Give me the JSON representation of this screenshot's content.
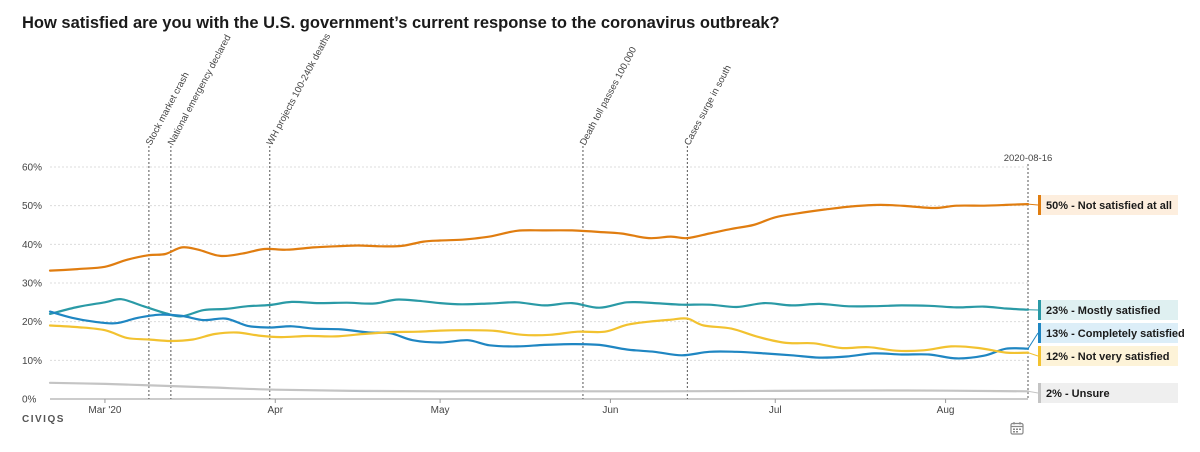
{
  "chart_data": {
    "type": "line",
    "title": "How satisfied are you with the U.S. government’s current response to the coronavirus outbreak?",
    "x_start": "2020-02-20",
    "x_end": "2020-08-16",
    "x_ticks": [
      {
        "date": "2020-03-01",
        "label": "Mar '20"
      },
      {
        "date": "2020-04-01",
        "label": "Apr"
      },
      {
        "date": "2020-05-01",
        "label": "May"
      },
      {
        "date": "2020-06-01",
        "label": "Jun"
      },
      {
        "date": "2020-07-01",
        "label": "Jul"
      },
      {
        "date": "2020-08-01",
        "label": "Aug"
      }
    ],
    "y_ticks": [
      {
        "value": 0,
        "label": "0%"
      },
      {
        "value": 10,
        "label": "10%"
      },
      {
        "value": 20,
        "label": "20%"
      },
      {
        "value": 30,
        "label": "30%"
      },
      {
        "value": 40,
        "label": "40%"
      },
      {
        "value": 50,
        "label": "50%"
      },
      {
        "value": 60,
        "label": "60%"
      }
    ],
    "ylim": [
      0,
      60
    ],
    "grid": true,
    "events": [
      {
        "date": "2020-03-09",
        "label": "Stock market crash"
      },
      {
        "date": "2020-03-13",
        "label": "National emergency declared"
      },
      {
        "date": "2020-03-31",
        "label": "WH projects 100-240k deaths"
      },
      {
        "date": "2020-05-27",
        "label": "Death toll passes 100,000"
      },
      {
        "date": "2020-06-15",
        "label": "Cases surge in south"
      },
      {
        "date": "2020-08-16",
        "label": "2020-08-16"
      }
    ],
    "series": [
      {
        "name": "Not satisfied at all",
        "legend": "50% - Not satisfied at all",
        "color": "#e07d10",
        "legend_bg": "#fdeede",
        "points": [
          [
            "2020-02-20",
            33.2
          ],
          [
            "2020-02-25",
            33.6
          ],
          [
            "2020-03-01",
            34.2
          ],
          [
            "2020-03-05",
            36.0
          ],
          [
            "2020-03-09",
            37.2
          ],
          [
            "2020-03-12",
            37.5
          ],
          [
            "2020-03-15",
            39.2
          ],
          [
            "2020-03-18",
            38.6
          ],
          [
            "2020-03-22",
            37.0
          ],
          [
            "2020-03-26",
            37.6
          ],
          [
            "2020-03-30",
            38.8
          ],
          [
            "2020-04-03",
            38.6
          ],
          [
            "2020-04-08",
            39.2
          ],
          [
            "2020-04-12",
            39.5
          ],
          [
            "2020-04-16",
            39.7
          ],
          [
            "2020-04-20",
            39.5
          ],
          [
            "2020-04-24",
            39.6
          ],
          [
            "2020-04-28",
            40.7
          ],
          [
            "2020-05-01",
            41.0
          ],
          [
            "2020-05-05",
            41.2
          ],
          [
            "2020-05-10",
            42.0
          ],
          [
            "2020-05-15",
            43.5
          ],
          [
            "2020-05-20",
            43.6
          ],
          [
            "2020-05-25",
            43.6
          ],
          [
            "2020-05-30",
            43.2
          ],
          [
            "2020-06-03",
            42.8
          ],
          [
            "2020-06-08",
            41.6
          ],
          [
            "2020-06-12",
            42.0
          ],
          [
            "2020-06-15",
            41.6
          ],
          [
            "2020-06-19",
            42.8
          ],
          [
            "2020-06-23",
            44.0
          ],
          [
            "2020-06-27",
            45.0
          ],
          [
            "2020-07-01",
            47.0
          ],
          [
            "2020-07-05",
            48.0
          ],
          [
            "2020-07-10",
            49.0
          ],
          [
            "2020-07-15",
            49.8
          ],
          [
            "2020-07-20",
            50.2
          ],
          [
            "2020-07-25",
            49.9
          ],
          [
            "2020-07-30",
            49.4
          ],
          [
            "2020-08-03",
            50.0
          ],
          [
            "2020-08-08",
            50.0
          ],
          [
            "2020-08-12",
            50.2
          ],
          [
            "2020-08-16",
            50.4
          ]
        ]
      },
      {
        "name": "Mostly satisfied",
        "legend": "23% - Mostly satisfied",
        "color": "#2a9aa6",
        "legend_bg": "#dff0f1",
        "points": [
          [
            "2020-02-20",
            22.0
          ],
          [
            "2020-02-25",
            23.8
          ],
          [
            "2020-03-01",
            25.0
          ],
          [
            "2020-03-04",
            25.8
          ],
          [
            "2020-03-08",
            24.0
          ],
          [
            "2020-03-12",
            22.2
          ],
          [
            "2020-03-15",
            21.4
          ],
          [
            "2020-03-19",
            23.0
          ],
          [
            "2020-03-23",
            23.3
          ],
          [
            "2020-03-27",
            24.0
          ],
          [
            "2020-03-31",
            24.3
          ],
          [
            "2020-04-04",
            25.1
          ],
          [
            "2020-04-09",
            24.8
          ],
          [
            "2020-04-14",
            24.9
          ],
          [
            "2020-04-19",
            24.7
          ],
          [
            "2020-04-23",
            25.7
          ],
          [
            "2020-04-27",
            25.4
          ],
          [
            "2020-05-01",
            24.8
          ],
          [
            "2020-05-05",
            24.5
          ],
          [
            "2020-05-10",
            24.7
          ],
          [
            "2020-05-15",
            25.0
          ],
          [
            "2020-05-20",
            24.2
          ],
          [
            "2020-05-25",
            24.8
          ],
          [
            "2020-05-30",
            23.6
          ],
          [
            "2020-06-04",
            25.0
          ],
          [
            "2020-06-09",
            24.8
          ],
          [
            "2020-06-14",
            24.4
          ],
          [
            "2020-06-19",
            24.4
          ],
          [
            "2020-06-24",
            23.8
          ],
          [
            "2020-06-29",
            24.8
          ],
          [
            "2020-07-04",
            24.2
          ],
          [
            "2020-07-09",
            24.6
          ],
          [
            "2020-07-14",
            24.0
          ],
          [
            "2020-07-19",
            24.0
          ],
          [
            "2020-07-24",
            24.2
          ],
          [
            "2020-07-29",
            24.1
          ],
          [
            "2020-08-03",
            23.7
          ],
          [
            "2020-08-08",
            23.9
          ],
          [
            "2020-08-12",
            23.4
          ],
          [
            "2020-08-16",
            23.1
          ]
        ]
      },
      {
        "name": "Completely satisfied",
        "legend": "13% - Completely satisfied",
        "color": "#1f86c2",
        "legend_bg": "#dceef8",
        "points": [
          [
            "2020-02-20",
            22.6
          ],
          [
            "2020-02-24",
            21.0
          ],
          [
            "2020-02-28",
            20.0
          ],
          [
            "2020-03-03",
            19.6
          ],
          [
            "2020-03-07",
            21.0
          ],
          [
            "2020-03-11",
            21.8
          ],
          [
            "2020-03-15",
            21.5
          ],
          [
            "2020-03-19",
            20.4
          ],
          [
            "2020-03-23",
            20.8
          ],
          [
            "2020-03-27",
            18.9
          ],
          [
            "2020-03-31",
            18.5
          ],
          [
            "2020-04-04",
            18.8
          ],
          [
            "2020-04-08",
            18.2
          ],
          [
            "2020-04-13",
            18.0
          ],
          [
            "2020-04-18",
            17.2
          ],
          [
            "2020-04-22",
            17.0
          ],
          [
            "2020-04-26",
            15.2
          ],
          [
            "2020-05-01",
            14.6
          ],
          [
            "2020-05-06",
            15.2
          ],
          [
            "2020-05-10",
            13.9
          ],
          [
            "2020-05-15",
            13.6
          ],
          [
            "2020-05-20",
            14.0
          ],
          [
            "2020-05-25",
            14.2
          ],
          [
            "2020-05-30",
            14.0
          ],
          [
            "2020-06-04",
            12.8
          ],
          [
            "2020-06-09",
            12.2
          ],
          [
            "2020-06-14",
            11.3
          ],
          [
            "2020-06-19",
            12.2
          ],
          [
            "2020-06-24",
            12.2
          ],
          [
            "2020-06-29",
            11.8
          ],
          [
            "2020-07-04",
            11.3
          ],
          [
            "2020-07-09",
            10.7
          ],
          [
            "2020-07-14",
            11.0
          ],
          [
            "2020-07-19",
            11.8
          ],
          [
            "2020-07-24",
            11.5
          ],
          [
            "2020-07-29",
            11.5
          ],
          [
            "2020-08-03",
            10.5
          ],
          [
            "2020-08-08",
            11.2
          ],
          [
            "2020-08-12",
            13.0
          ],
          [
            "2020-08-16",
            13.0
          ]
        ]
      },
      {
        "name": "Not very satisfied",
        "legend": "12% - Not very satisfied",
        "color": "#f2c230",
        "legend_bg": "#fdf3d8",
        "points": [
          [
            "2020-02-20",
            19.0
          ],
          [
            "2020-02-25",
            18.6
          ],
          [
            "2020-03-01",
            17.8
          ],
          [
            "2020-03-05",
            15.8
          ],
          [
            "2020-03-09",
            15.4
          ],
          [
            "2020-03-13",
            15.0
          ],
          [
            "2020-03-17",
            15.4
          ],
          [
            "2020-03-21",
            16.8
          ],
          [
            "2020-03-25",
            17.2
          ],
          [
            "2020-03-29",
            16.4
          ],
          [
            "2020-04-02",
            16.0
          ],
          [
            "2020-04-07",
            16.3
          ],
          [
            "2020-04-12",
            16.2
          ],
          [
            "2020-04-17",
            16.8
          ],
          [
            "2020-04-22",
            17.3
          ],
          [
            "2020-04-27",
            17.4
          ],
          [
            "2020-05-01",
            17.7
          ],
          [
            "2020-05-06",
            17.8
          ],
          [
            "2020-05-11",
            17.6
          ],
          [
            "2020-05-16",
            16.6
          ],
          [
            "2020-05-21",
            16.6
          ],
          [
            "2020-05-26",
            17.4
          ],
          [
            "2020-05-31",
            17.4
          ],
          [
            "2020-06-04",
            19.2
          ],
          [
            "2020-06-08",
            20.0
          ],
          [
            "2020-06-12",
            20.5
          ],
          [
            "2020-06-15",
            20.8
          ],
          [
            "2020-06-18",
            19.0
          ],
          [
            "2020-06-23",
            18.2
          ],
          [
            "2020-06-28",
            16.0
          ],
          [
            "2020-07-03",
            14.5
          ],
          [
            "2020-07-08",
            14.4
          ],
          [
            "2020-07-13",
            13.2
          ],
          [
            "2020-07-18",
            13.4
          ],
          [
            "2020-07-23",
            12.5
          ],
          [
            "2020-07-28",
            12.6
          ],
          [
            "2020-08-02",
            13.6
          ],
          [
            "2020-08-07",
            13.2
          ],
          [
            "2020-08-12",
            12.0
          ],
          [
            "2020-08-16",
            12.0
          ]
        ]
      },
      {
        "name": "Unsure",
        "legend": "2% - Unsure",
        "color": "#c4c4c4",
        "legend_bg": "#efefef",
        "points": [
          [
            "2020-02-20",
            4.2
          ],
          [
            "2020-03-01",
            3.9
          ],
          [
            "2020-03-10",
            3.5
          ],
          [
            "2020-03-20",
            3.0
          ],
          [
            "2020-04-01",
            2.4
          ],
          [
            "2020-04-15",
            2.1
          ],
          [
            "2020-05-01",
            2.0
          ],
          [
            "2020-05-20",
            2.0
          ],
          [
            "2020-06-10",
            2.0
          ],
          [
            "2020-07-01",
            2.1
          ],
          [
            "2020-07-25",
            2.2
          ],
          [
            "2020-08-16",
            2.0
          ]
        ]
      }
    ]
  },
  "brand": {
    "logo_text": "CIVIQS"
  }
}
